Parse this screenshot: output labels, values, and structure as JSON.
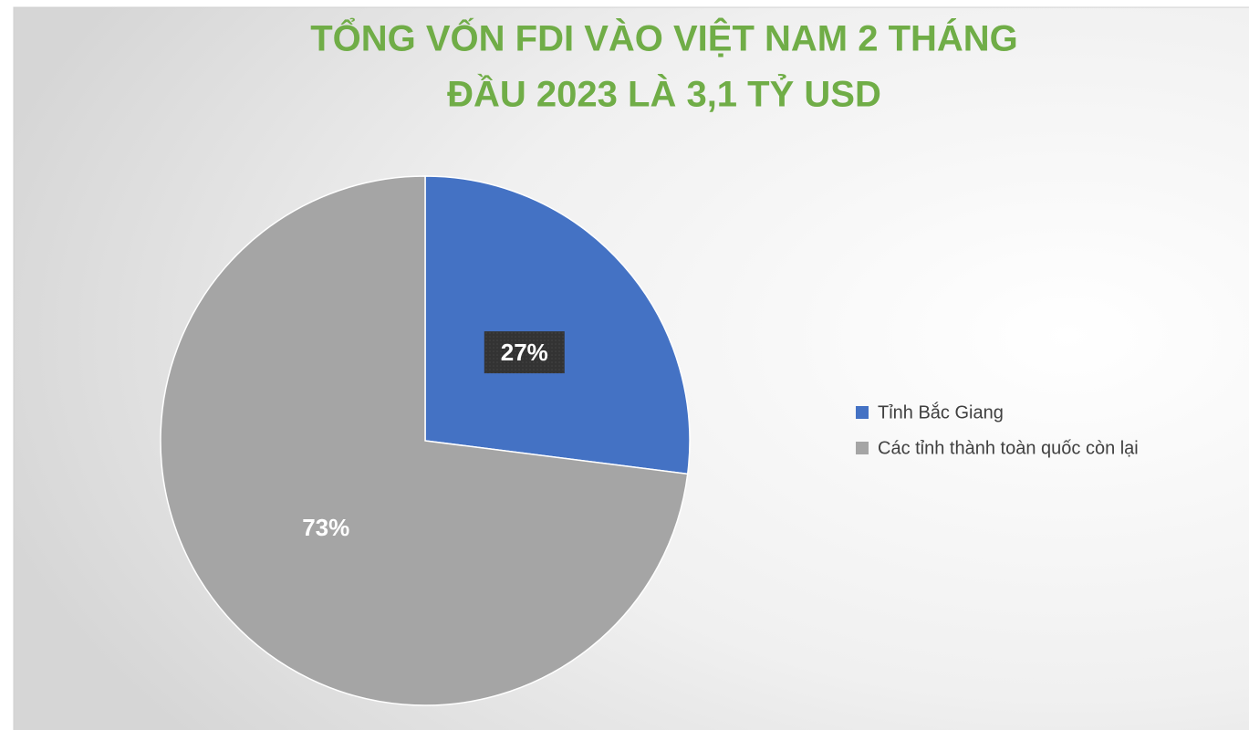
{
  "chart_data": {
    "type": "pie",
    "title": [
      "TỔNG VỐN FDI VÀO VIỆT NAM 2 THÁNG",
      "ĐẦU 2023 LÀ 3,1 TỶ USD"
    ],
    "categories": [
      "Tỉnh Bắc Giang",
      "Các tỉnh thành toàn quốc còn lại"
    ],
    "values": [
      27,
      73
    ],
    "value_labels": [
      "27%",
      "73%"
    ],
    "colors": [
      "#4472c4",
      "#a5a5a5"
    ],
    "legend": "right"
  }
}
